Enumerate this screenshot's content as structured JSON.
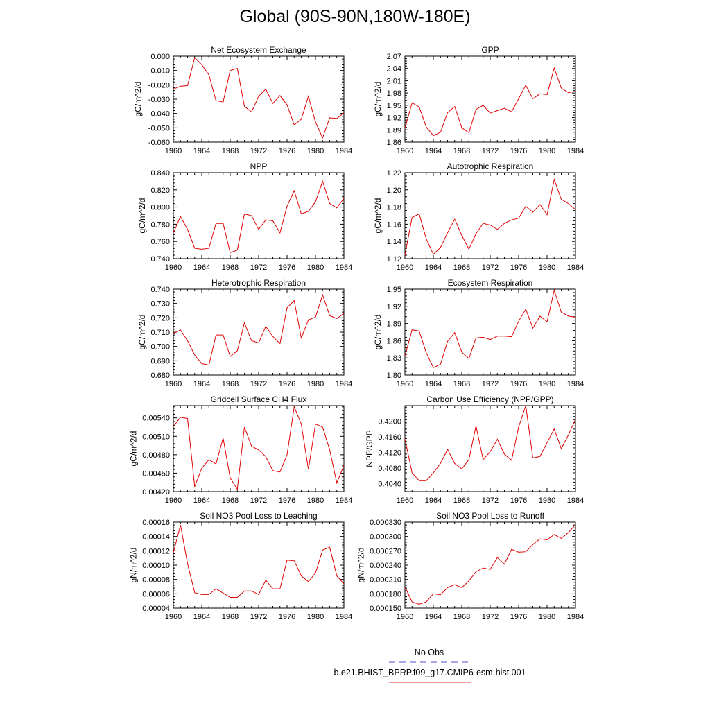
{
  "page_title": "Global (90S-90N,180W-180E)",
  "legend": {
    "entries": [
      {
        "label": "No Obs",
        "color": "#5050d0",
        "dash": true
      },
      {
        "label": "b.e21.BHIST_BPRP.f09_g17.CMIP6-esm-hist.001",
        "color": "#e03030",
        "dash": false
      }
    ]
  },
  "chart_data": [
    {
      "type": "line",
      "title": "Net Ecosystem Exchange",
      "ylabel": "gC/m^2/d",
      "xlim": [
        1960,
        1984
      ],
      "ylim": [
        -0.06,
        0.0
      ],
      "xticks": [
        1960,
        1964,
        1968,
        1972,
        1976,
        1980,
        1984
      ],
      "yticks": [
        -0.06,
        -0.05,
        -0.04,
        -0.03,
        -0.02,
        -0.01,
        0.0
      ],
      "ytick_labels": [
        "-0.060",
        "-0.050",
        "-0.040",
        "-0.030",
        "-0.020",
        "-0.010",
        "0.000"
      ],
      "x": [
        1960,
        1961,
        1962,
        1963,
        1964,
        1965,
        1966,
        1967,
        1968,
        1969,
        1970,
        1971,
        1972,
        1973,
        1974,
        1975,
        1976,
        1977,
        1978,
        1979,
        1980,
        1981,
        1982,
        1983,
        1984
      ],
      "series": [
        {
          "color": "#e00000",
          "values": [
            -0.023,
            -0.021,
            -0.0205,
            -0.001,
            -0.006,
            -0.013,
            -0.031,
            -0.032,
            -0.01,
            -0.0085,
            -0.035,
            -0.039,
            -0.028,
            -0.023,
            -0.033,
            -0.0275,
            -0.034,
            -0.048,
            -0.044,
            -0.028,
            -0.046,
            -0.057,
            -0.043,
            -0.0435,
            -0.0395
          ]
        }
      ]
    },
    {
      "type": "line",
      "title": "GPP",
      "ylabel": "gC/m^2/d",
      "xlim": [
        1960,
        1984
      ],
      "ylim": [
        1.86,
        2.07
      ],
      "xticks": [
        1960,
        1964,
        1968,
        1972,
        1976,
        1980,
        1984
      ],
      "yticks": [
        1.86,
        1.89,
        1.92,
        1.95,
        1.98,
        2.01,
        2.04,
        2.07
      ],
      "ytick_labels": [
        "1.86",
        "1.89",
        "1.92",
        "1.95",
        "1.98",
        "2.01",
        "2.04",
        "2.07"
      ],
      "x": [
        1960,
        1961,
        1962,
        1963,
        1964,
        1965,
        1966,
        1967,
        1968,
        1969,
        1970,
        1971,
        1972,
        1973,
        1974,
        1975,
        1976,
        1977,
        1978,
        1979,
        1980,
        1981,
        1982,
        1983,
        1984
      ],
      "series": [
        {
          "color": "#e00000",
          "values": [
            1.893,
            1.956,
            1.946,
            1.897,
            1.876,
            1.884,
            1.932,
            1.947,
            1.895,
            1.883,
            1.94,
            1.95,
            1.931,
            1.937,
            1.943,
            1.934,
            1.966,
            1.999,
            1.966,
            1.978,
            1.976,
            2.041,
            1.992,
            1.981,
            1.984
          ]
        }
      ]
    },
    {
      "type": "line",
      "title": "NPP",
      "ylabel": "gC/m^2/d",
      "xlim": [
        1960,
        1984
      ],
      "ylim": [
        0.74,
        0.84
      ],
      "xticks": [
        1960,
        1964,
        1968,
        1972,
        1976,
        1980,
        1984
      ],
      "yticks": [
        0.74,
        0.76,
        0.78,
        0.8,
        0.82,
        0.84
      ],
      "ytick_labels": [
        "0.740",
        "0.760",
        "0.780",
        "0.800",
        "0.820",
        "0.840"
      ],
      "x": [
        1960,
        1961,
        1962,
        1963,
        1964,
        1965,
        1966,
        1967,
        1968,
        1969,
        1970,
        1971,
        1972,
        1973,
        1974,
        1975,
        1976,
        1977,
        1978,
        1979,
        1980,
        1981,
        1982,
        1983,
        1984
      ],
      "series": [
        {
          "color": "#e00000",
          "values": [
            0.77,
            0.789,
            0.774,
            0.752,
            0.751,
            0.752,
            0.781,
            0.781,
            0.747,
            0.75,
            0.792,
            0.79,
            0.774,
            0.785,
            0.784,
            0.77,
            0.801,
            0.819,
            0.792,
            0.795,
            0.806,
            0.83,
            0.804,
            0.799,
            0.81
          ]
        }
      ]
    },
    {
      "type": "line",
      "title": "Autotrophic Respiration",
      "ylabel": "gC/m^2/d",
      "xlim": [
        1960,
        1984
      ],
      "ylim": [
        1.12,
        1.22
      ],
      "xticks": [
        1960,
        1964,
        1968,
        1972,
        1976,
        1980,
        1984
      ],
      "yticks": [
        1.12,
        1.14,
        1.16,
        1.18,
        1.2,
        1.22
      ],
      "ytick_labels": [
        "1.12",
        "1.14",
        "1.16",
        "1.18",
        "1.20",
        "1.22"
      ],
      "x": [
        1960,
        1961,
        1962,
        1963,
        1964,
        1965,
        1966,
        1967,
        1968,
        1969,
        1970,
        1971,
        1972,
        1973,
        1974,
        1975,
        1976,
        1977,
        1978,
        1979,
        1980,
        1981,
        1982,
        1983,
        1984
      ],
      "series": [
        {
          "color": "#e00000",
          "values": [
            1.124,
            1.168,
            1.172,
            1.143,
            1.125,
            1.133,
            1.15,
            1.166,
            1.147,
            1.131,
            1.149,
            1.161,
            1.159,
            1.154,
            1.161,
            1.165,
            1.167,
            1.181,
            1.174,
            1.183,
            1.171,
            1.212,
            1.189,
            1.184,
            1.177
          ]
        }
      ]
    },
    {
      "type": "line",
      "title": "Heterotrophic Respiration",
      "ylabel": "gC/m^2/d",
      "xlim": [
        1960,
        1984
      ],
      "ylim": [
        0.68,
        0.74
      ],
      "xticks": [
        1960,
        1964,
        1968,
        1972,
        1976,
        1980,
        1984
      ],
      "yticks": [
        0.68,
        0.69,
        0.7,
        0.71,
        0.72,
        0.73,
        0.74
      ],
      "ytick_labels": [
        "0.680",
        "0.690",
        "0.700",
        "0.710",
        "0.720",
        "0.730",
        "0.740"
      ],
      "x": [
        1960,
        1961,
        1962,
        1963,
        1964,
        1965,
        1966,
        1967,
        1968,
        1969,
        1970,
        1971,
        1972,
        1973,
        1974,
        1975,
        1976,
        1977,
        1978,
        1979,
        1980,
        1981,
        1982,
        1983,
        1984
      ],
      "series": [
        {
          "color": "#e00000",
          "values": [
            0.709,
            0.7115,
            0.704,
            0.694,
            0.688,
            0.687,
            0.708,
            0.708,
            0.693,
            0.697,
            0.7165,
            0.704,
            0.7025,
            0.714,
            0.707,
            0.702,
            0.727,
            0.732,
            0.706,
            0.7185,
            0.7205,
            0.736,
            0.7215,
            0.7195,
            0.723
          ]
        }
      ]
    },
    {
      "type": "line",
      "title": "Ecosystem Respiration",
      "ylabel": "gC/m^2/d",
      "xlim": [
        1960,
        1984
      ],
      "ylim": [
        1.8,
        1.95
      ],
      "xticks": [
        1960,
        1964,
        1968,
        1972,
        1976,
        1980,
        1984
      ],
      "yticks": [
        1.8,
        1.83,
        1.86,
        1.89,
        1.92,
        1.95
      ],
      "ytick_labels": [
        "1.80",
        "1.83",
        "1.86",
        "1.89",
        "1.92",
        "1.95"
      ],
      "x": [
        1960,
        1961,
        1962,
        1963,
        1964,
        1965,
        1966,
        1967,
        1968,
        1969,
        1970,
        1971,
        1972,
        1973,
        1974,
        1975,
        1976,
        1977,
        1978,
        1979,
        1980,
        1981,
        1982,
        1983,
        1984
      ],
      "series": [
        {
          "color": "#e00000",
          "values": [
            1.833,
            1.879,
            1.877,
            1.839,
            1.813,
            1.819,
            1.859,
            1.874,
            1.84,
            1.829,
            1.865,
            1.866,
            1.862,
            1.868,
            1.868,
            1.867,
            1.894,
            1.915,
            1.882,
            1.903,
            1.893,
            1.948,
            1.91,
            1.903,
            1.901
          ]
        }
      ]
    },
    {
      "type": "line",
      "title": "Gridcell Surface CH4 Flux",
      "ylabel": "gC/m^2/d",
      "xlim": [
        1960,
        1984
      ],
      "ylim": [
        0.0042,
        0.0056
      ],
      "xticks": [
        1960,
        1964,
        1968,
        1972,
        1976,
        1980,
        1984
      ],
      "yticks": [
        0.0042,
        0.0045,
        0.0048,
        0.0051,
        0.0054
      ],
      "ytick_labels": [
        "0.00420",
        "0.00450",
        "0.00480",
        "0.00510",
        "0.00540"
      ],
      "x": [
        1960,
        1961,
        1962,
        1963,
        1964,
        1965,
        1966,
        1967,
        1968,
        1969,
        1970,
        1971,
        1972,
        1973,
        1974,
        1975,
        1976,
        1977,
        1978,
        1979,
        1980,
        1981,
        1982,
        1983,
        1984
      ],
      "series": [
        {
          "color": "#e00000",
          "values": [
            0.00526,
            0.00541,
            0.00539,
            0.00428,
            0.00458,
            0.00472,
            0.00465,
            0.00507,
            0.00442,
            0.00424,
            0.00525,
            0.00494,
            0.00488,
            0.00477,
            0.00454,
            0.00452,
            0.0048,
            0.00558,
            0.0053,
            0.00456,
            0.0053,
            0.00525,
            0.00488,
            0.00434,
            0.00463
          ]
        }
      ]
    },
    {
      "type": "line",
      "title": "Carbon Use Efficiency (NPP/GPP)",
      "ylabel": "NPP/GPP",
      "xlim": [
        1960,
        1984
      ],
      "ylim": [
        0.402,
        0.424
      ],
      "xticks": [
        1960,
        1964,
        1968,
        1972,
        1976,
        1980,
        1984
      ],
      "yticks": [
        0.404,
        0.408,
        0.412,
        0.416,
        0.42
      ],
      "ytick_labels": [
        "0.4040",
        "0.4080",
        "0.4120",
        "0.4160",
        "0.4200"
      ],
      "x": [
        1960,
        1961,
        1962,
        1963,
        1964,
        1965,
        1966,
        1967,
        1968,
        1969,
        1970,
        1971,
        1972,
        1973,
        1974,
        1975,
        1976,
        1977,
        1978,
        1979,
        1980,
        1981,
        1982,
        1983,
        1984
      ],
      "series": [
        {
          "color": "#e00000",
          "values": [
            0.4155,
            0.4068,
            0.4048,
            0.4048,
            0.4068,
            0.4092,
            0.4128,
            0.4092,
            0.4078,
            0.4102,
            0.4188,
            0.4102,
            0.4122,
            0.4154,
            0.4116,
            0.41,
            0.4185,
            0.424,
            0.4106,
            0.411,
            0.4145,
            0.418,
            0.413,
            0.4165,
            0.4205
          ]
        }
      ]
    },
    {
      "type": "line",
      "title": "Soil NO3 Pool Loss to Leaching",
      "ylabel": "gN/m^2/d",
      "xlim": [
        1960,
        1984
      ],
      "ylim": [
        4e-05,
        0.00016
      ],
      "xticks": [
        1960,
        1964,
        1968,
        1972,
        1976,
        1980,
        1984
      ],
      "yticks": [
        4e-05,
        6e-05,
        8e-05,
        0.0001,
        0.00012,
        0.00014,
        0.00016
      ],
      "ytick_labels": [
        "0.00004",
        "0.00006",
        "0.00008",
        "0.00010",
        "0.00012",
        "0.00014",
        "0.00016"
      ],
      "x": [
        1960,
        1961,
        1962,
        1963,
        1964,
        1965,
        1966,
        1967,
        1968,
        1969,
        1970,
        1971,
        1972,
        1973,
        1974,
        1975,
        1976,
        1977,
        1978,
        1979,
        1980,
        1981,
        1982,
        1983,
        1984
      ],
      "series": [
        {
          "color": "#e00000",
          "values": [
            0.000117,
            0.000156,
            0.000102,
            6.15e-05,
            5.9e-05,
            5.9e-05,
            6.7e-05,
            6.1e-05,
            5.5e-05,
            5.5e-05,
            6.4e-05,
            6.4e-05,
            5.9e-05,
            7.9e-05,
            6.7e-05,
            6.7e-05,
            0.000107,
            0.000106,
            8.5e-05,
            7.7e-05,
            8.9e-05,
            0.000121,
            0.000125,
            8.5e-05,
            7.4e-05
          ]
        }
      ]
    },
    {
      "type": "line",
      "title": "Soil NO3 Pool Loss to Runoff",
      "ylabel": "gN/m^2/d",
      "xlim": [
        1960,
        1984
      ],
      "ylim": [
        0.00015,
        0.00033
      ],
      "xticks": [
        1960,
        1964,
        1968,
        1972,
        1976,
        1980,
        1984
      ],
      "yticks": [
        0.00015,
        0.00018,
        0.00021,
        0.00024,
        0.00027,
        0.0003,
        0.00033
      ],
      "ytick_labels": [
        "0.000150",
        "0.000180",
        "0.000210",
        "0.000240",
        "0.000270",
        "0.000300",
        "0.000330"
      ],
      "x": [
        1960,
        1961,
        1962,
        1963,
        1964,
        1965,
        1966,
        1967,
        1968,
        1969,
        1970,
        1971,
        1972,
        1973,
        1974,
        1975,
        1976,
        1977,
        1978,
        1979,
        1980,
        1981,
        1982,
        1983,
        1984
      ],
      "series": [
        {
          "color": "#e00000",
          "values": [
            0.000195,
            0.000163,
            0.000158,
            0.000163,
            0.00018,
            0.000178,
            0.000193,
            0.000199,
            0.000193,
            0.000207,
            0.000226,
            0.000234,
            0.000231,
            0.000256,
            0.000242,
            0.000273,
            0.000267,
            0.000268,
            0.000283,
            0.000295,
            0.000293,
            0.000304,
            0.000296,
            0.000308,
            0.000325
          ]
        }
      ]
    }
  ]
}
